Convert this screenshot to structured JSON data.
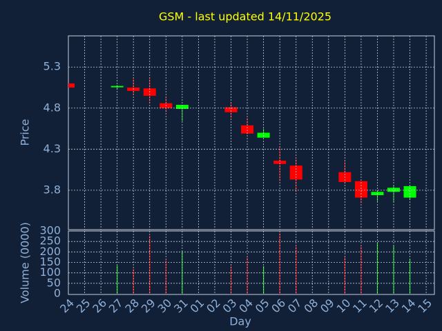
{
  "chart_data": [
    {
      "type": "candlestick",
      "title": "GSM - last updated 14/11/2025",
      "ylabel": "Price",
      "open": [
        5.1,
        null,
        null,
        5.06,
        5.05,
        5.04,
        4.86,
        4.79,
        null,
        null,
        4.81,
        4.59,
        4.44,
        4.16,
        4.1,
        null,
        null,
        4.02,
        3.91,
        3.74,
        3.78,
        3.71,
        null
      ],
      "high": [
        5.1,
        null,
        null,
        5.08,
        5.16,
        5.17,
        4.93,
        4.84,
        null,
        null,
        4.87,
        4.68,
        4.55,
        4.33,
        4.18,
        null,
        null,
        4.15,
        3.91,
        3.8,
        3.86,
        3.86,
        null
      ],
      "low": [
        5.05,
        null,
        null,
        5.03,
        4.96,
        4.86,
        4.75,
        4.64,
        null,
        null,
        4.68,
        4.48,
        4.44,
        3.91,
        3.78,
        null,
        null,
        3.88,
        3.64,
        3.66,
        3.65,
        3.68,
        null
      ],
      "close": [
        5.05,
        null,
        null,
        5.07,
        5.01,
        4.95,
        4.8,
        4.84,
        null,
        null,
        4.75,
        4.49,
        4.5,
        4.12,
        3.93,
        null,
        null,
        3.9,
        3.71,
        3.78,
        3.83,
        3.85,
        null
      ],
      "up_color": "#00ff00",
      "down_color": "#ff0000",
      "ylim": [
        3.32,
        5.68
      ],
      "yticks": [
        3.8,
        4.3,
        4.8,
        5.3
      ],
      "grid": true
    },
    {
      "type": "bar",
      "ylabel": "Volume (0000)",
      "xlabel": "Day",
      "categories": [
        "24",
        "25",
        "26",
        "27",
        "28",
        "29",
        "30",
        "31",
        "01",
        "02",
        "03",
        "04",
        "05",
        "06",
        "07",
        "08",
        "09",
        "10",
        "11",
        "12",
        "13",
        "14",
        "15"
      ],
      "values": [
        null,
        null,
        null,
        135,
        119,
        277,
        161,
        201,
        null,
        null,
        132,
        175,
        132,
        290,
        227,
        null,
        null,
        175,
        227,
        244,
        231,
        165,
        null
      ],
      "colors": [
        null,
        null,
        null,
        "#00ff00",
        "#ff0000",
        "#ff0000",
        "#ff0000",
        "#00ff00",
        null,
        null,
        "#ff0000",
        "#ff0000",
        "#00ff00",
        "#ff0000",
        "#ff0000",
        null,
        null,
        "#ff0000",
        "#ff0000",
        "#00ff00",
        "#00ff00",
        "#00ff00",
        null
      ],
      "ylim": [
        0,
        300
      ],
      "yticks": [
        0,
        50,
        100,
        150,
        200,
        250,
        300
      ],
      "grid": true
    }
  ]
}
